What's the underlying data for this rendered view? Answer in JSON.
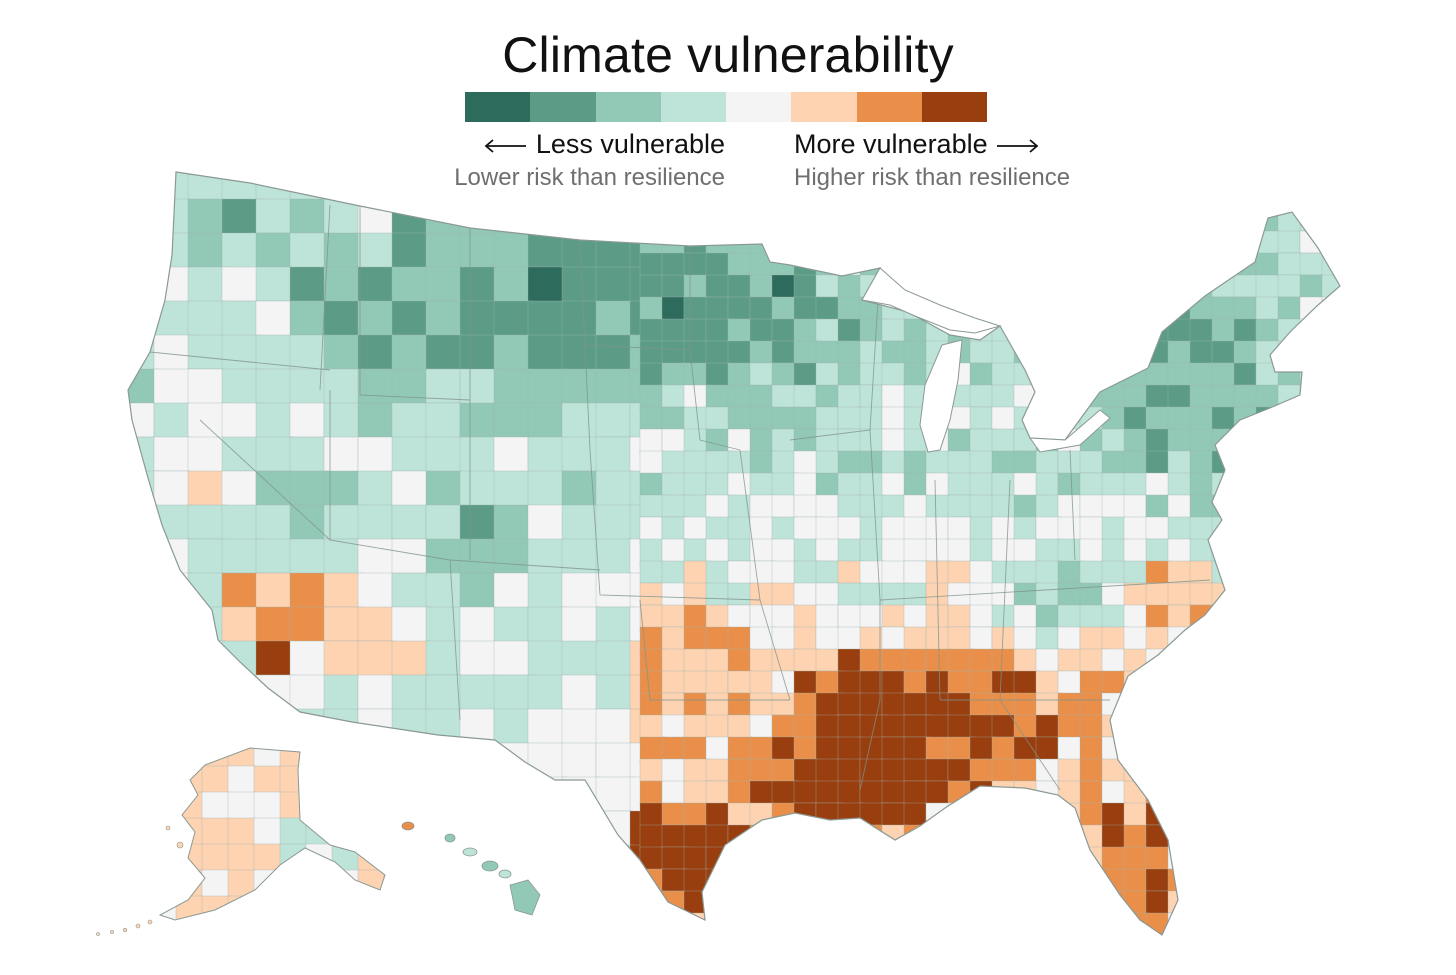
{
  "title": "Climate vulnerability",
  "legend": {
    "colors": [
      "#2d6b5c",
      "#5c9c87",
      "#92c9b6",
      "#bee3d8",
      "#f4f4f4",
      "#fdd3b2",
      "#e98f4a",
      "#983e0f"
    ],
    "less": {
      "label": "Less vulnerable",
      "sublabel": "Lower risk than resilience"
    },
    "more": {
      "label": "More vulnerable",
      "sublabel": "Higher risk than resilience"
    }
  },
  "map": {
    "region": "United States",
    "unit": "county",
    "description_levels": [
      "1",
      "2",
      "3",
      "4",
      "5",
      "6",
      "7",
      "8"
    ],
    "border_color": "#7a8a85"
  }
}
